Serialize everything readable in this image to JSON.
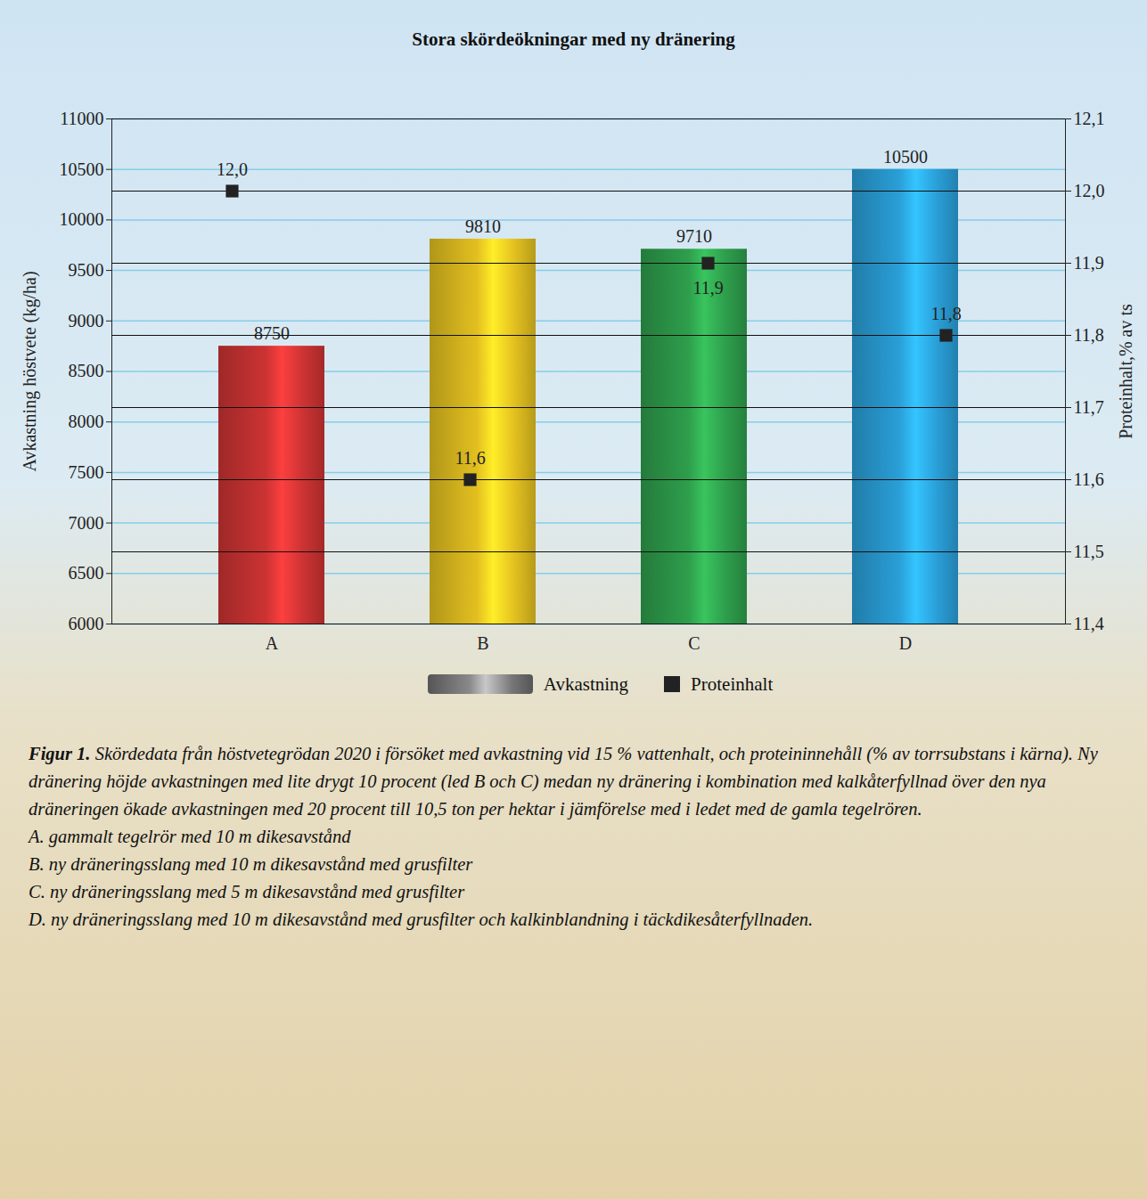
{
  "chart_data": {
    "type": "bar",
    "title": "Stora skördeökningar med ny dränering",
    "categories": [
      "A",
      "B",
      "C",
      "D"
    ],
    "series": [
      {
        "name": "Avkastning",
        "type": "bar",
        "colors": [
          "#cc3333",
          "#e3c020",
          "#2e9e4c",
          "#2a9fd8"
        ],
        "values": [
          8750,
          9810,
          9710,
          10500
        ]
      },
      {
        "name": "Proteinhalt",
        "type": "scatter",
        "axis": "y2",
        "color": "#222222",
        "marker": "square",
        "values": [
          12.0,
          11.6,
          11.9,
          11.8
        ],
        "value_labels": [
          "12,0",
          "11,6",
          "11,9",
          "11,8"
        ]
      }
    ],
    "ylabel": "Avkastning höstvete (kg/ha)",
    "y2label": "Proteinhalt,% av ts",
    "ylim": [
      6000,
      11000
    ],
    "yticks": [
      6000,
      6500,
      7000,
      7500,
      8000,
      8500,
      9000,
      9500,
      10000,
      10500,
      11000
    ],
    "y2lim": [
      11.4,
      12.1
    ],
    "y2ticks": [
      {
        "value": 11.4,
        "label": "11,4"
      },
      {
        "value": 11.5,
        "label": "11,5"
      },
      {
        "value": 11.6,
        "label": "11,6"
      },
      {
        "value": 11.7,
        "label": "11,7"
      },
      {
        "value": 11.8,
        "label": "11,8"
      },
      {
        "value": 11.9,
        "label": "11,9"
      },
      {
        "value": 12.0,
        "label": "12,0"
      },
      {
        "value": 12.1,
        "label": "12,1"
      }
    ],
    "grid": true,
    "data_labels": true,
    "legend": "bottom",
    "caption": {
      "lead": "Figur 1.",
      "text": "Skördedata från höstvetegrödan 2020 i försöket med avkastning vid 15 % vattenhalt, och proteininnehåll (% av torrsubstans i kärna). Ny dränering höjde avkastningen med lite drygt 10 procent (led B och C) medan ny dränering i kombination med kalkåterfyllnad över den nya dräneringen ökade avkastningen med 20 procent till 10,5 ton per hektar i jämförelse med i ledet med de gamla tegelrören.",
      "items": [
        "A. gammalt tegelrör med 10 m dikesavstånd",
        "B. ny dräneringsslang med 10 m dikesavstånd med grusfilter",
        "C. ny dräneringsslang med 5 m dikesavstånd med grusfilter",
        "D. ny dräneringsslang med 10 m dikesavstånd med grusfilter och kalkinblandning i täckdikesåterfyllnaden."
      ]
    }
  }
}
